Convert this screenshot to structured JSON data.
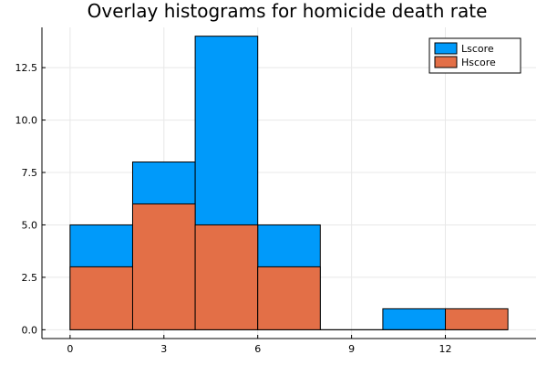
{
  "chart_data": {
    "type": "bar",
    "subtype": "overlay-histogram",
    "title": "Overlay histograms for homicide death rate",
    "xlabel": "",
    "ylabel": "",
    "bin_edges": [
      0,
      2,
      4,
      6,
      8,
      10,
      12,
      14
    ],
    "xlim": [
      -0.9,
      14.9
    ],
    "ylim": [
      -0.42,
      14.42
    ],
    "xticks": [
      0,
      3,
      6,
      9,
      12
    ],
    "xtick_labels": [
      "0",
      "3",
      "6",
      "9",
      "12"
    ],
    "yticks": [
      0,
      2.5,
      5,
      7.5,
      10,
      12.5
    ],
    "ytick_labels": [
      "0.0",
      "2.5",
      "5.0",
      "7.5",
      "10.0",
      "12.5"
    ],
    "grid": true,
    "legend_position": "top-right",
    "series": [
      {
        "name": "Lscore",
        "color": "#009AFA",
        "values": [
          5,
          8,
          14,
          5,
          0,
          1,
          0
        ]
      },
      {
        "name": "Hscore",
        "color": "#E36F47",
        "values": [
          3,
          6,
          5,
          3,
          0,
          0,
          1
        ]
      }
    ]
  }
}
